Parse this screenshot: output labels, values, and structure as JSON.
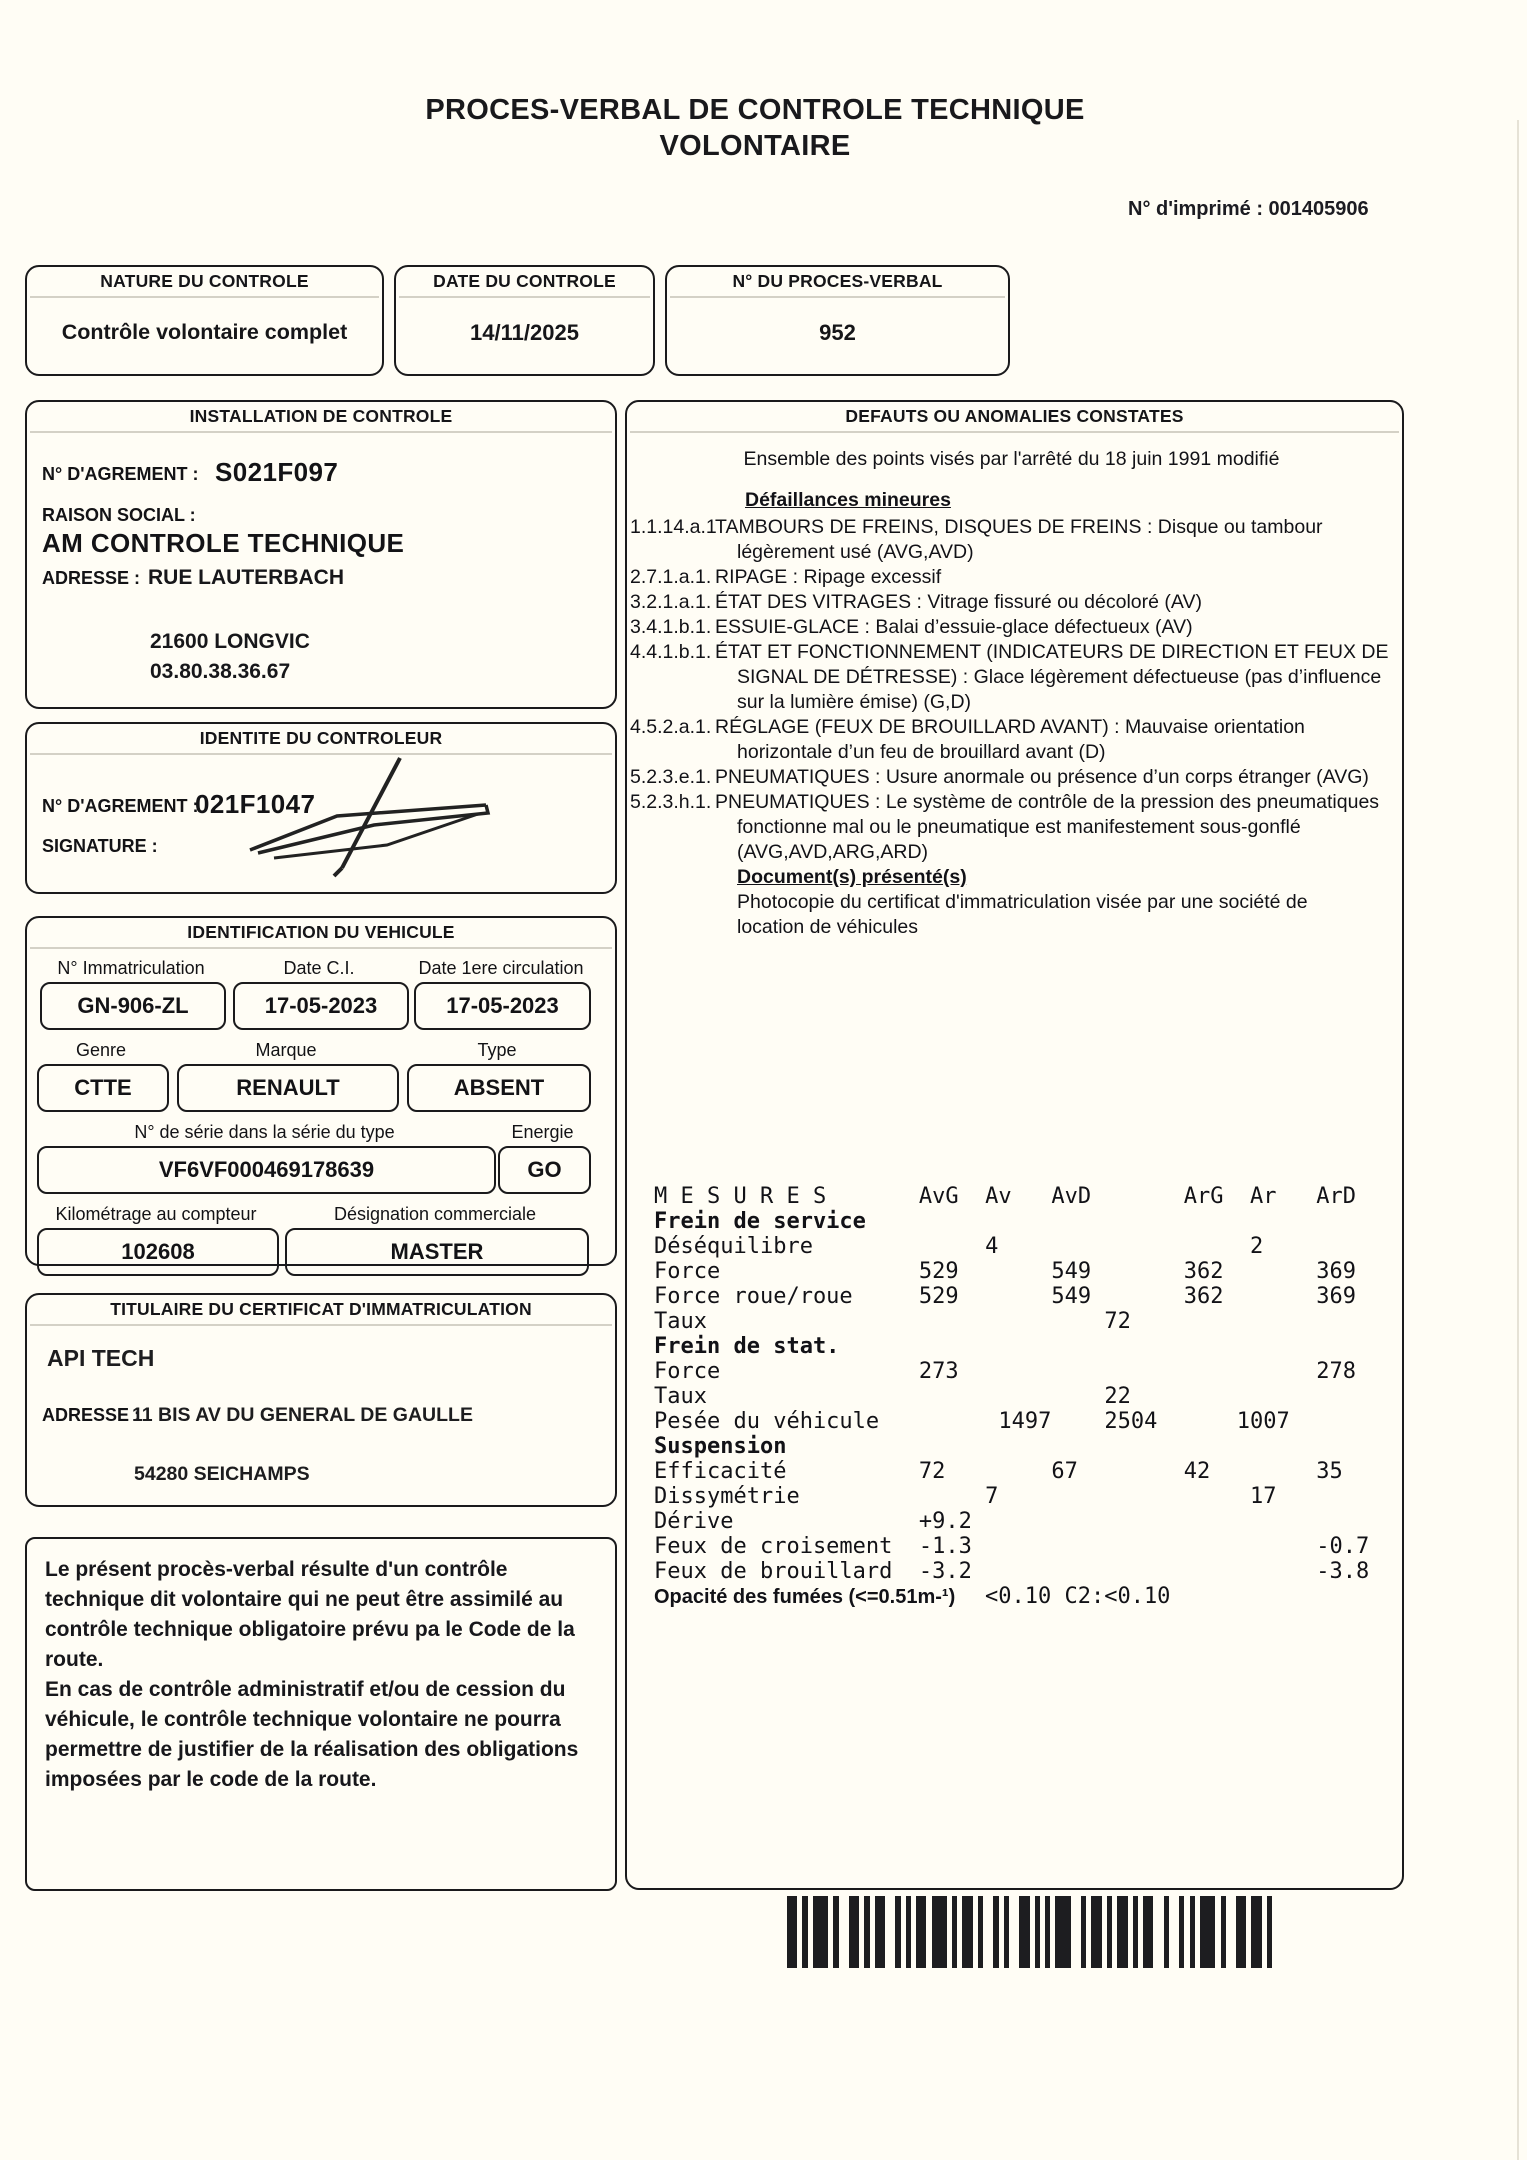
{
  "page": {
    "title_line1": "PROCES-VERBAL DE CONTROLE TECHNIQUE",
    "title_line2": "VOLONTAIRE",
    "print_number": "N° d'imprimé : 001405906"
  },
  "top_boxes": {
    "nature": {
      "title": "NATURE DU CONTROLE",
      "value": "Contrôle volontaire complet"
    },
    "date": {
      "title": "DATE DU CONTROLE",
      "value": "14/11/2025"
    },
    "pv": {
      "title": "N° DU PROCES-VERBAL",
      "value": "952"
    }
  },
  "installation": {
    "title": "INSTALLATION DE CONTROLE",
    "agrement_label": "N° D'AGREMENT :",
    "agrement_value": "S021F097",
    "raison_label": "RAISON SOCIAL :",
    "raison_value": "AM CONTROLE TECHNIQUE",
    "adresse_label": "ADRESSE :",
    "adresse_value": "RUE LAUTERBACH",
    "ville": "21600 LONGVIC",
    "telephone": "03.80.38.36.67"
  },
  "controleur": {
    "title": "IDENTITE DU CONTROLEUR",
    "agrement_label": "N° D'AGREMENT :",
    "agrement_value": "021F1047",
    "signature_label": "SIGNATURE :"
  },
  "vehicule": {
    "title": "IDENTIFICATION DU VEHICULE",
    "immat_label": "N° Immatriculation",
    "immat_value": "GN-906-ZL",
    "dateci_label": "Date C.I.",
    "dateci_value": "17-05-2023",
    "date1_label": "Date 1ere circulation",
    "date1_value": "17-05-2023",
    "genre_label": "Genre",
    "genre_value": "CTTE",
    "marque_label": "Marque",
    "marque_value": "RENAULT",
    "type_label": "Type",
    "type_value": "ABSENT",
    "serie_label": "N° de série dans la série du type",
    "serie_value": "VF6VF000469178639",
    "energie_label": "Energie",
    "energie_value": "GO",
    "km_label": "Kilométrage au compteur",
    "km_value": "102608",
    "design_label": "Désignation commerciale",
    "design_value": "MASTER"
  },
  "titulaire": {
    "title": "TITULAIRE DU CERTIFICAT D'IMMATRICULATION",
    "nom": "API TECH",
    "adresse_label": "ADRESSE :",
    "adresse_value": "11 BIS AV DU GENERAL DE GAULLE",
    "ville": "54280 SEICHAMPS"
  },
  "defauts": {
    "title": "DEFAUTS OU ANOMALIES CONSTATES",
    "intro": "Ensemble des points visés par l'arrêté du 18 juin 1991 modifié",
    "minor_header": "Défaillances mineures",
    "items": [
      {
        "code": "1.1.14.a.1",
        "text": "TAMBOURS DE FREINS, DISQUES DE FREINS : Disque ou tambour légèrement usé (AVG,AVD)"
      },
      {
        "code": "2.7.1.a.1.",
        "text": "RIPAGE : Ripage excessif"
      },
      {
        "code": "3.2.1.a.1.",
        "text": "ÉTAT DES VITRAGES : Vitrage fissuré ou décoloré (AV)"
      },
      {
        "code": "3.4.1.b.1.",
        "text": "ESSUIE-GLACE : Balai d’essuie-glace défectueux (AV)"
      },
      {
        "code": "4.4.1.b.1.",
        "text": "ÉTAT ET FONCTIONNEMENT (INDICATEURS DE DIRECTION ET FEUX DE SIGNAL DE DÉTRESSE) : Glace légèrement défectueuse (pas d’influence sur la lumière émise) (G,D)"
      },
      {
        "code": "4.5.2.a.1.",
        "text": "RÉGLAGE (FEUX DE BROUILLARD AVANT) : Mauvaise orientation horizontale d’un feu de brouillard avant (D)"
      },
      {
        "code": "5.2.3.e.1.",
        "text": "PNEUMATIQUES : Usure anormale ou présence d’un corps étranger (AVG)"
      },
      {
        "code": "5.2.3.h.1.",
        "text": "PNEUMATIQUES : Le système de contrôle de la pression des pneumatiques fonctionne mal ou le pneumatique est manifestement sous-gonflé (AVG,AVD,ARG,ARD)"
      }
    ],
    "documents_header": "Document(s) présenté(s)",
    "documents_text": "Photocopie du certificat d'immatriculation visée par une société de location de véhicules"
  },
  "mesures": {
    "lines": [
      {
        "t": "M E S U R E S       AvG  Av   AvD       ArG  Ar   ArD",
        "b": false
      },
      {
        "t": "Frein de service",
        "b": true
      },
      {
        "t": "Déséquilibre             4                   2",
        "b": false
      },
      {
        "t": "Force               529       549       362       369",
        "b": false
      },
      {
        "t": "Force roue/roue     529       549       362       369",
        "b": false
      },
      {
        "t": "Taux                              72",
        "b": false
      },
      {
        "t": "Frein de stat.",
        "b": true
      },
      {
        "t": "Force               273                           278",
        "b": false
      },
      {
        "t": "Taux                              22",
        "b": false
      },
      {
        "t": "Pesée du véhicule         1497    2504      1007",
        "b": false
      },
      {
        "t": "Suspension",
        "b": true
      },
      {
        "t": "Efficacité          72        67        42        35",
        "b": false
      },
      {
        "t": "Dissymétrie              7                   17",
        "b": false
      },
      {
        "t": "Dérive              +9.2",
        "b": false
      },
      {
        "t": "Feux de croisement  -1.3                          -0.7",
        "b": false
      },
      {
        "t": "Feux de brouillard  -3.2                          -3.8",
        "b": false
      }
    ],
    "opacity_label": "Opacité des fumées (<=0.51m-¹)",
    "opacity_value": "<0.10 C2:<0.10"
  },
  "legal": {
    "paragraphs": [
      "Le présent procès-verbal résulte d'un contrôle technique dit volontaire qui ne peut être assimilé au contrôle technique obligatoire prévu pa le Code de la route.",
      "En cas de contrôle administratif et/ou de cession du véhicule, le contrôle technique volontaire ne pourra permettre de justifier de la réalisation des obligations imposées par le code de la route."
    ]
  },
  "barcode": {
    "pattern": "21113112211122111121311121121112211111321121112111221211113112212112"
  },
  "colors": {
    "paper": "#fffdf5",
    "ink": "#1a1a1c"
  }
}
